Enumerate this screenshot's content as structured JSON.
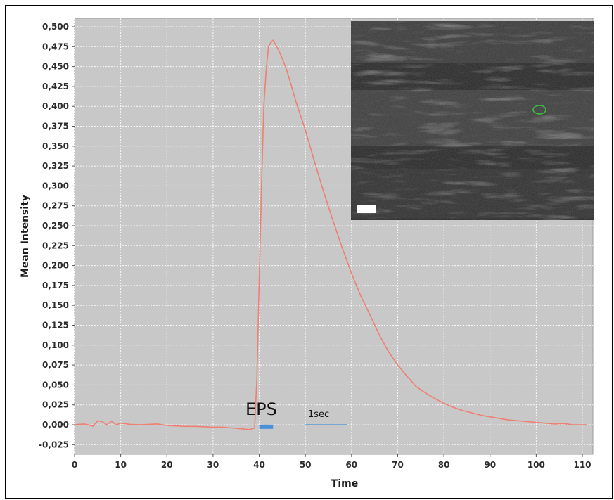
{
  "chart_data": {
    "type": "line",
    "xlabel": "Time",
    "ylabel": "Mean Intensity",
    "xlim": [
      0,
      112
    ],
    "ylim": [
      -0.03,
      0.51
    ],
    "x_ticks": [
      0,
      10,
      20,
      30,
      40,
      50,
      60,
      70,
      80,
      90,
      100,
      110
    ],
    "x_tick_labels": [
      "0",
      "10",
      "20",
      "30",
      "40",
      "50",
      "60",
      "70",
      "80",
      "90",
      "100",
      "110"
    ],
    "y_ticks": [
      -0.025,
      0.0,
      0.025,
      0.05,
      0.075,
      0.1,
      0.125,
      0.15,
      0.175,
      0.2,
      0.225,
      0.25,
      0.275,
      0.3,
      0.325,
      0.35,
      0.375,
      0.4,
      0.425,
      0.45,
      0.475,
      0.5
    ],
    "y_tick_labels": [
      "-0,025",
      "0,000",
      "0,025",
      "0,050",
      "0,075",
      "0,100",
      "0,125",
      "0,150",
      "0,175",
      "0,200",
      "0,225",
      "0,250",
      "0,275",
      "0,300",
      "0,325",
      "0,350",
      "0,375",
      "0,400",
      "0,425",
      "0,450",
      "0,475",
      "0,500"
    ],
    "grid": true,
    "series": [
      {
        "color": "#ef7f73",
        "x": [
          0,
          1,
          2,
          3,
          4,
          5,
          6,
          7,
          8,
          9,
          10,
          12,
          14,
          16,
          18,
          20,
          22,
          24,
          26,
          28,
          30,
          32,
          34,
          36,
          38,
          39,
          39.5,
          40,
          40.5,
          41,
          41.5,
          42,
          42.5,
          43,
          44,
          45,
          46,
          48,
          50,
          52,
          54,
          56,
          58,
          60,
          62,
          64,
          66,
          68,
          70,
          72,
          74,
          76,
          78,
          80,
          82,
          84,
          86,
          88,
          90,
          92,
          94,
          96,
          98,
          100,
          102,
          104,
          106,
          108,
          110,
          111
        ],
        "y": [
          0.0,
          0.0005,
          0.001,
          0.0,
          -0.002,
          0.005,
          0.004,
          0.0,
          0.0045,
          0.0,
          0.002,
          0.0005,
          0.0,
          0.0005,
          0.001,
          -0.001,
          -0.0015,
          -0.002,
          -0.002,
          -0.0025,
          -0.003,
          -0.003,
          -0.004,
          -0.005,
          -0.006,
          -0.004,
          0.06,
          0.18,
          0.3,
          0.4,
          0.445,
          0.475,
          0.48,
          0.483,
          0.473,
          0.46,
          0.445,
          0.405,
          0.37,
          0.33,
          0.292,
          0.256,
          0.222,
          0.19,
          0.162,
          0.138,
          0.113,
          0.092,
          0.075,
          0.061,
          0.048,
          0.04,
          0.033,
          0.027,
          0.022,
          0.018,
          0.015,
          0.012,
          0.01,
          0.008,
          0.006,
          0.005,
          0.004,
          0.003,
          0.002,
          0.001,
          0.0015,
          0.0,
          0.0,
          0.0
        ]
      }
    ],
    "annotations": {
      "eps_label": "EPS",
      "eps_bar": {
        "x_start": 40,
        "x_end": 43,
        "y": -0.0025,
        "color": "#4a90d9"
      },
      "scale_label": "1sec",
      "scale_bar": {
        "x_start": 50,
        "x_end": 59,
        "y": 0.0,
        "color": "#4a90d9"
      }
    }
  },
  "inset": {
    "description_icon": "microscopy-image",
    "background_color": "#2a2a2a",
    "roi_color": "#3fbf3f",
    "scalebar_color": "#ffffff"
  }
}
